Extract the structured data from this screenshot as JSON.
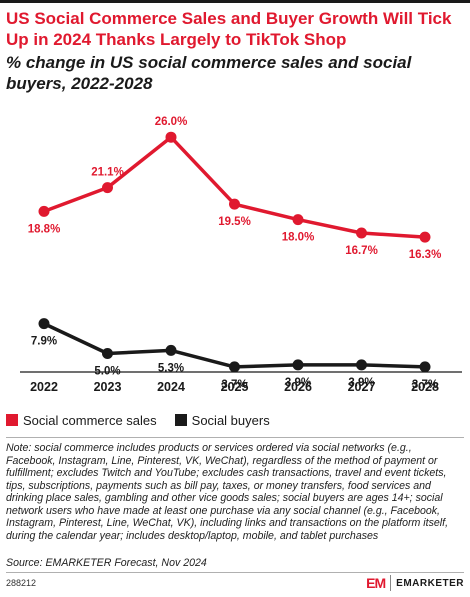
{
  "header": {
    "title": "US Social Commerce Sales and Buyer Growth Will Tick Up in 2024 Thanks Largely to TikTok Shop",
    "subtitle": "% change in US social commerce sales and social buyers, 2022-2028"
  },
  "chart_data": {
    "type": "line",
    "categories": [
      "2022",
      "2023",
      "2024",
      "2025",
      "2026",
      "2027",
      "2028"
    ],
    "series": [
      {
        "name": "Social commerce sales",
        "color": "#e0192f",
        "values": [
          18.8,
          21.1,
          26.0,
          19.5,
          18.0,
          16.7,
          16.3
        ],
        "labels": [
          "18.8%",
          "21.1%",
          "26.0%",
          "19.5%",
          "18.0%",
          "16.7%",
          "16.3%"
        ]
      },
      {
        "name": "Social buyers",
        "color": "#1a1a1a",
        "values": [
          7.9,
          5.0,
          5.3,
          3.7,
          3.9,
          3.9,
          3.7
        ],
        "labels": [
          "7.9%",
          "5.0%",
          "5.3%",
          "3.7%",
          "3.9%",
          "3.9%",
          "3.7%"
        ]
      }
    ],
    "title": "",
    "xlabel": "",
    "ylabel": "",
    "ylim": [
      0,
      27
    ],
    "grid": false,
    "legend": "bottom-left"
  },
  "legend": {
    "items": [
      {
        "label": "Social commerce sales",
        "color": "#e0192f"
      },
      {
        "label": "Social buyers",
        "color": "#1a1a1a"
      }
    ]
  },
  "footer": {
    "note": "Note: social commerce includes products or services ordered via social networks (e.g., Facebook, Instagram, Line, Pinterest, VK, WeChat), regardless of the method of payment or fulfillment; excludes Twitch and YouTube; excludes cash transactions, travel and event tickets, tips, subscriptions, payments such as bill pay, taxes, or money transfers, food services and drinking place sales, gambling and other vice goods sales; social buyers are ages 14+; social network users who have made at least one purchase via any social channel (e.g., Facebook, Instagram, Pinterest, Line, WeChat, VK), including links and transactions on the platform itself, during the calendar year; includes desktop/laptop, mobile, and tablet purchases",
    "source": "Source: EMARKETER Forecast, Nov 2024",
    "chart_id": "288212",
    "brand_mark": "EM",
    "brand_name": "EMARKETER"
  }
}
